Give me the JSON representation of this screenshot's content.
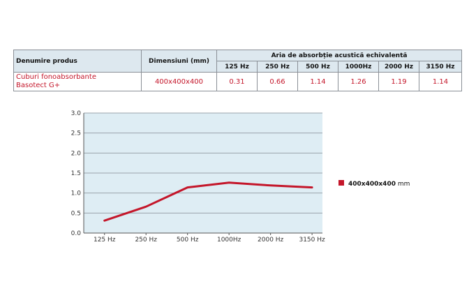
{
  "table": {
    "col_name": "Denumire produs",
    "col_dim": "Dimensiuni (mm)",
    "col_group": "Aria de absorbție acustică echivalentă",
    "freqs": [
      "125 Hz",
      "250 Hz",
      "500 Hz",
      "1000Hz",
      "2000 Hz",
      "3150 Hz"
    ],
    "product_line1": "Cuburi fonoabsorbante",
    "product_line2": "Basotect G+",
    "dimension": "400x400x400",
    "values": [
      "0.31",
      "0.66",
      "1.14",
      "1.26",
      "1.19",
      "1.14"
    ]
  },
  "chart_data": {
    "type": "line",
    "categories": [
      "125 Hz",
      "250 Hz",
      "500 Hz",
      "1000Hz",
      "2000 Hz",
      "3150 Hz"
    ],
    "series": [
      {
        "name": "400x400x400",
        "unit": "mm",
        "values": [
          0.31,
          0.66,
          1.14,
          1.26,
          1.19,
          1.14
        ]
      }
    ],
    "ylim": [
      0,
      3.0
    ],
    "yticks": [
      "0.0",
      "0.5",
      "1.0",
      "1.5",
      "2.0",
      "2.5",
      "3.0"
    ],
    "grid": true,
    "legend": "right",
    "colors": {
      "line": "#c4162a",
      "plot_bg": "#deedf4",
      "grid": "#9aa3ab"
    }
  }
}
